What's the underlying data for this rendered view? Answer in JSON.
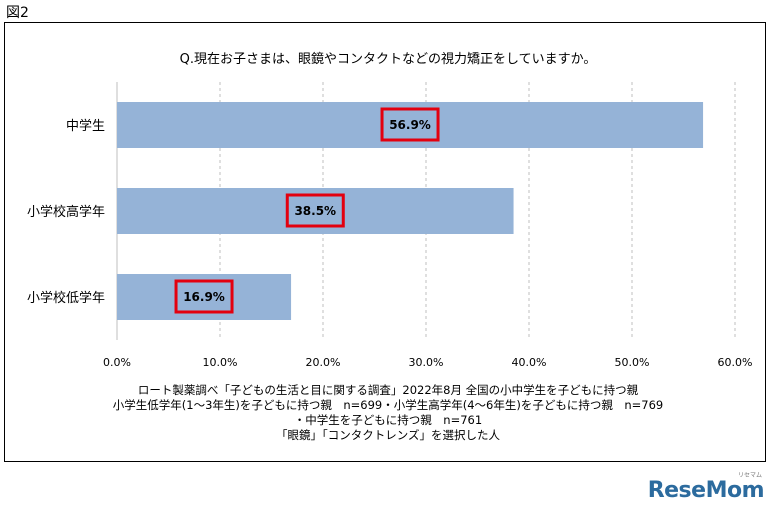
{
  "figure_label": "図2",
  "logo": {
    "text": "ReseMom",
    "sub": "リセマム"
  },
  "chart_data": {
    "type": "bar",
    "orientation": "horizontal",
    "title": "Q.現在お子さまは、眼鏡やコンタクトなどの視力矯正をしていますか。",
    "categories": [
      "中学生",
      "小学校高学年",
      "小学校低学年"
    ],
    "values": [
      56.9,
      38.5,
      16.9
    ],
    "value_labels": [
      "56.9%",
      "38.5%",
      "16.9%"
    ],
    "xlim": [
      0,
      60
    ],
    "ticks": [
      0,
      10,
      20,
      30,
      40,
      50,
      60
    ],
    "tick_labels": [
      "0.0%",
      "10.0%",
      "20.0%",
      "30.0%",
      "40.0%",
      "50.0%",
      "60.0%"
    ],
    "grid": true,
    "bar_color": "#95b3d7",
    "highlight_color": "#e3000f"
  },
  "notes": [
    "ロート製薬調べ「子どもの生活と目に関する調査」2022年8月 全国の小中学生を子どもに持つ親",
    "小学生低学年(1～3年生)を子どもに持つ親　n=699・小学生高学年(4～6年生)を子どもに持つ親　n=769",
    "・中学生を子どもに持つ親　n=761",
    "「眼鏡」「コンタクトレンズ」を選択した人"
  ]
}
